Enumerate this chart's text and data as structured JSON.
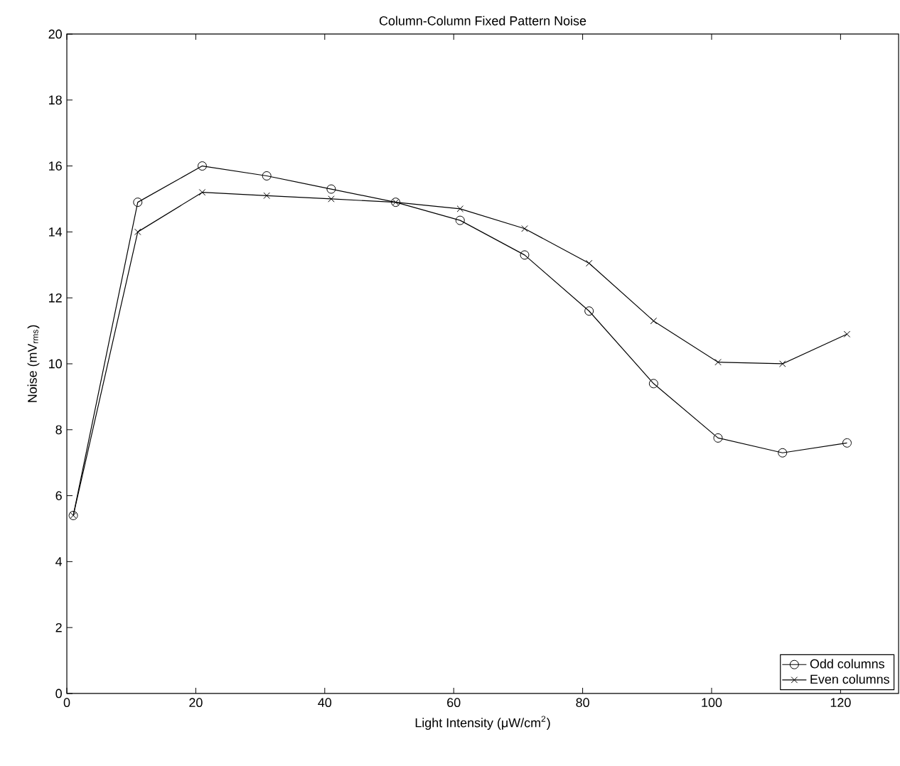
{
  "chart_data": {
    "type": "line",
    "title": "Column-Column Fixed Pattern Noise",
    "xlabel": "Light Intensity (μW/cm$^{2}$)",
    "ylabel": "Noise (mV$_{rms}$)",
    "x": [
      1,
      11,
      21,
      31,
      41,
      51,
      61,
      71,
      81,
      91,
      101,
      111,
      121
    ],
    "series": [
      {
        "name": "Odd columns",
        "color": "#000000",
        "marker": "circle",
        "values": [
          5.4,
          14.9,
          16.0,
          15.7,
          15.3,
          14.9,
          14.35,
          13.3,
          11.6,
          9.4,
          7.75,
          7.3,
          7.6
        ]
      },
      {
        "name": "Even columns",
        "color": "#000000",
        "marker": "cross",
        "values": [
          5.4,
          14.0,
          15.2,
          15.1,
          15.0,
          14.9,
          14.7,
          14.1,
          13.05,
          11.3,
          10.05,
          10.0,
          10.9
        ]
      }
    ],
    "xlim": [
      0,
      129
    ],
    "ylim": [
      0,
      20
    ],
    "xticks": [
      0,
      20,
      40,
      60,
      80,
      100,
      120
    ],
    "yticks": [
      0,
      2,
      4,
      6,
      8,
      10,
      12,
      14,
      16,
      18,
      20
    ],
    "grid": false,
    "legend": "bottom right",
    "line_style": "solid"
  }
}
